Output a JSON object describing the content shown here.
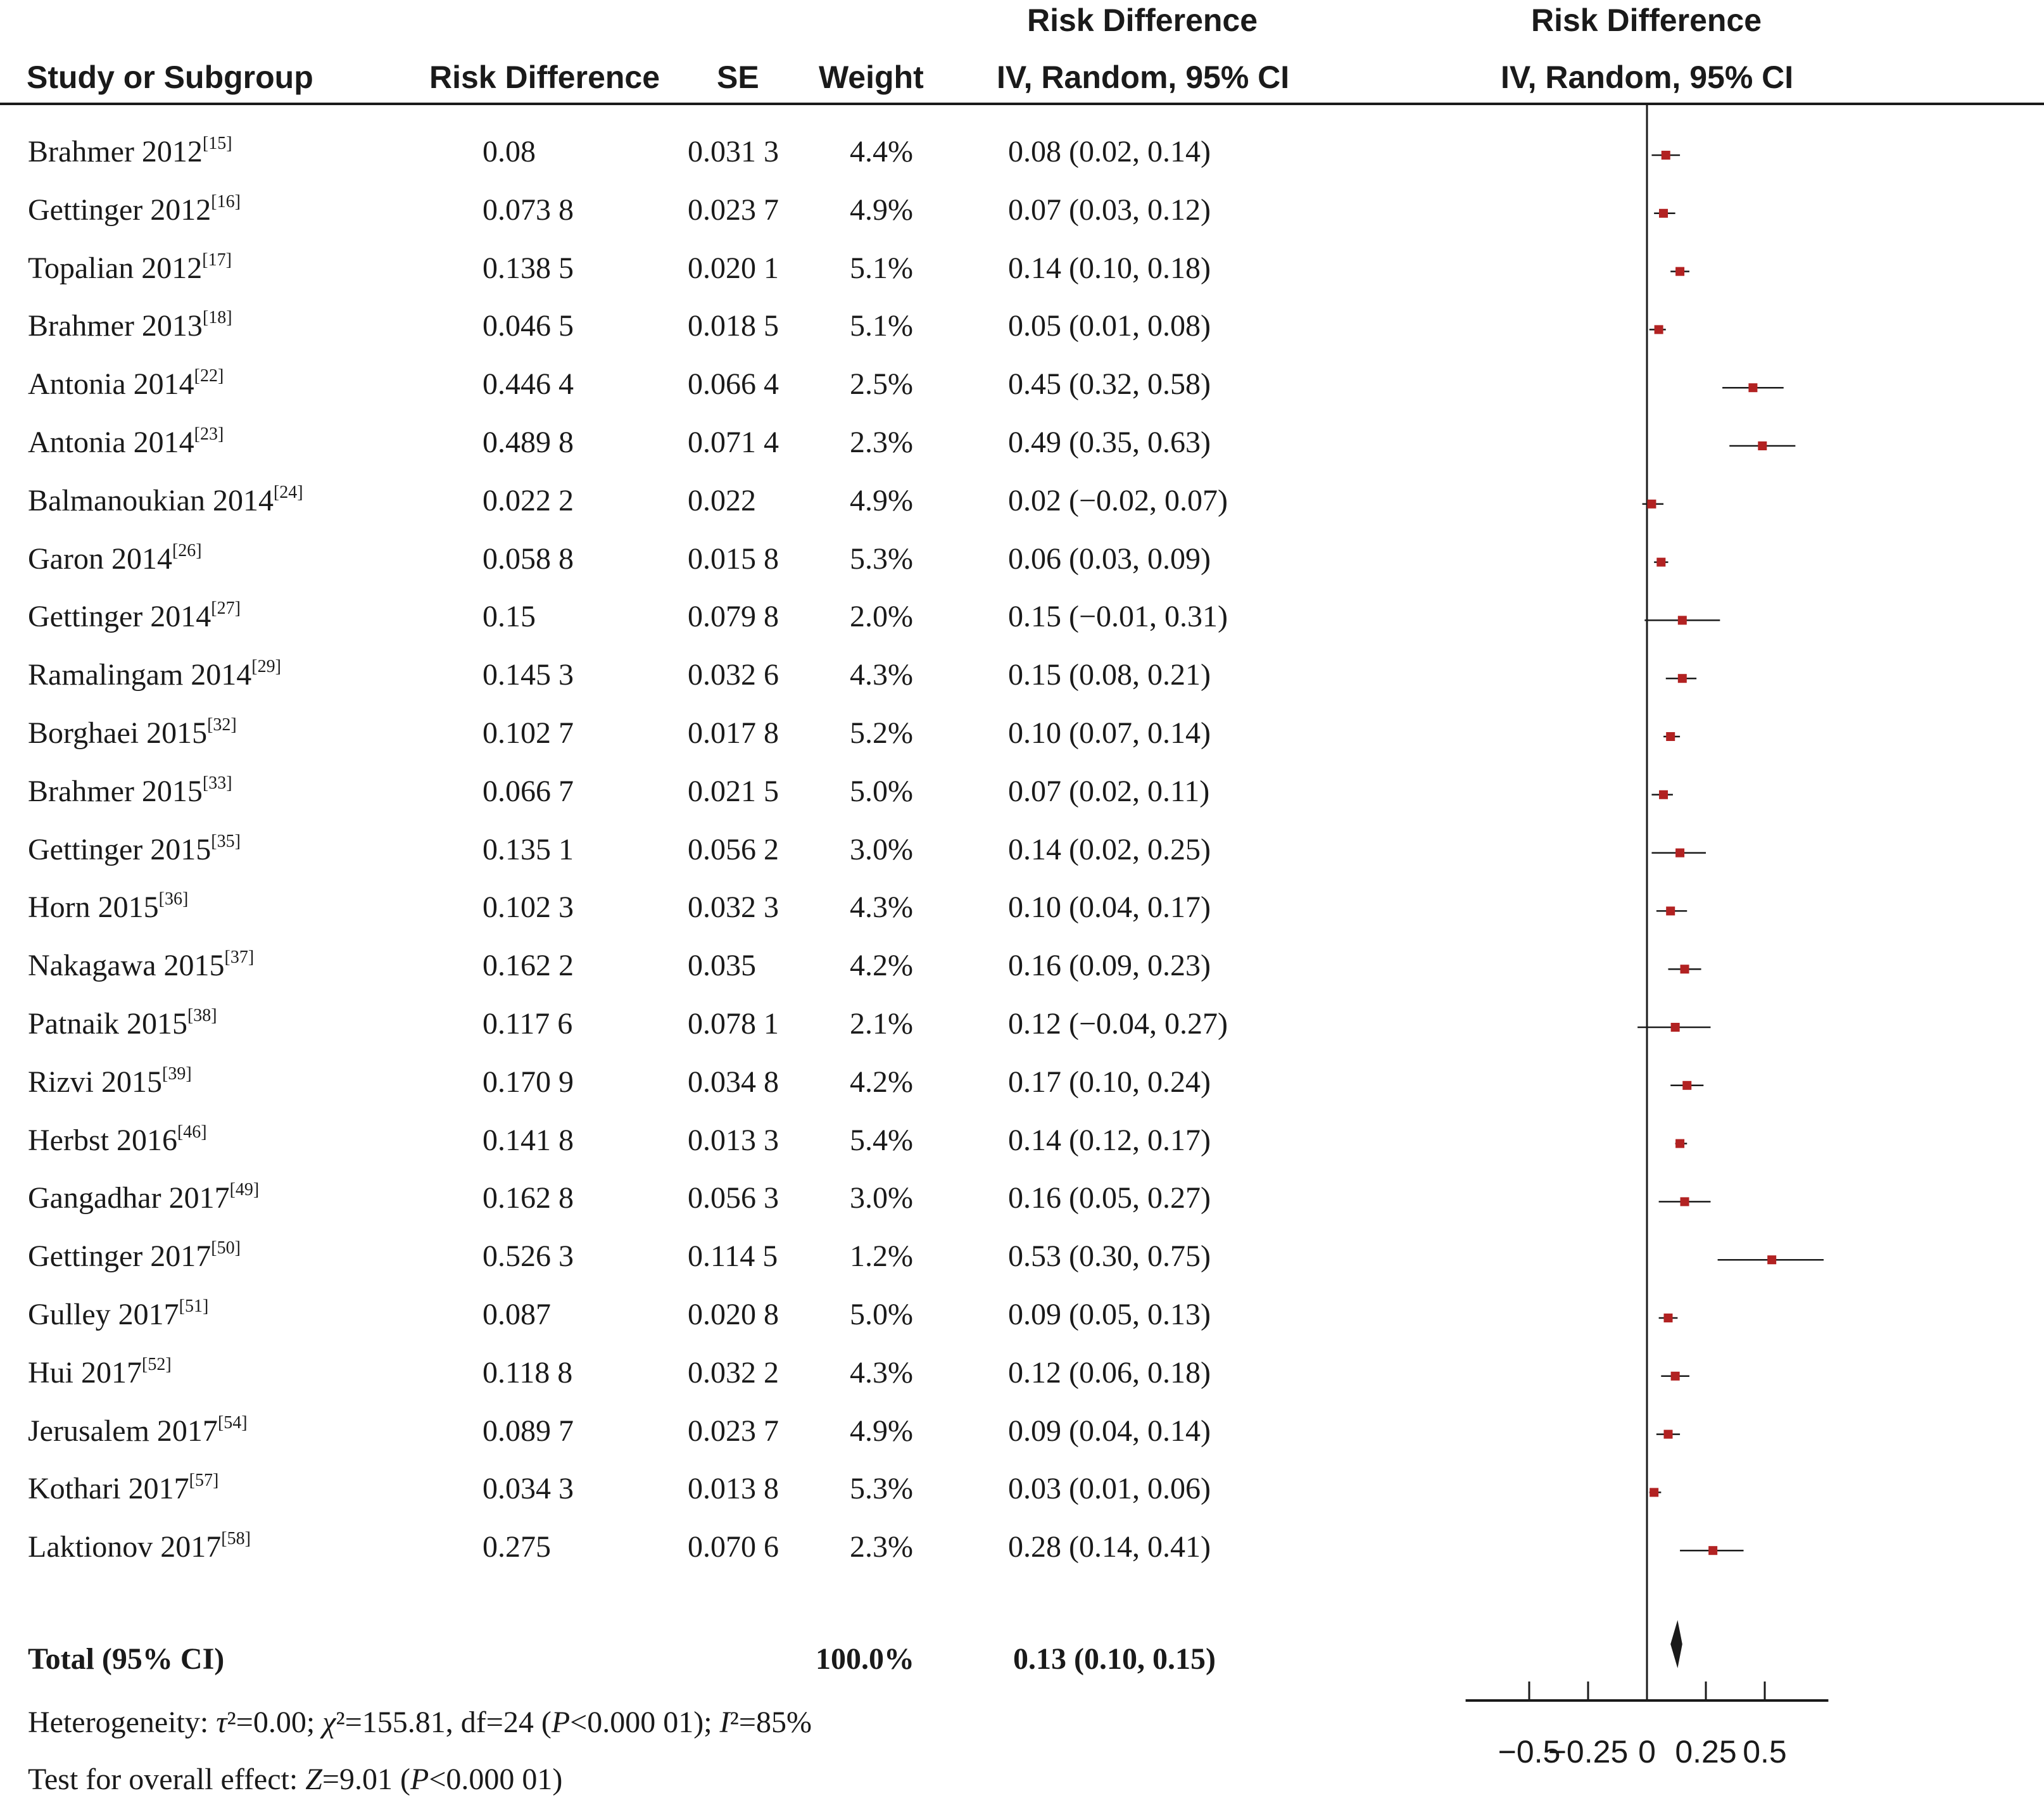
{
  "headers": {
    "study": "Study or Subgroup",
    "rd": "Risk Difference",
    "se": "SE",
    "weight": "Weight",
    "ci_top": "Risk Difference",
    "ci_bottom": "IV, Random, 95% CI",
    "plot_top": "Risk Difference",
    "plot_bottom": "IV, Random, 95% CI"
  },
  "chart_data": {
    "type": "forest",
    "xlabel": "",
    "x_ticks": [
      "−0.5",
      "−0.25",
      "0",
      "0.25",
      "0.5"
    ],
    "x_tick_values": [
      -0.5,
      -0.25,
      0,
      0.25,
      0.5
    ],
    "xlim": [
      -0.77,
      0.77
    ],
    "studies": [
      {
        "name": "Brahmer 2012",
        "ref": "[15]",
        "rd": "0.08",
        "se": "0.031 3",
        "weight": "4.4%",
        "ci_text": "0.08 (0.02, 0.14)",
        "est": 0.08,
        "lo": 0.02,
        "hi": 0.14
      },
      {
        "name": "Gettinger 2012",
        "ref": "[16]",
        "rd": "0.073 8",
        "se": "0.023 7",
        "weight": "4.9%",
        "ci_text": "0.07 (0.03, 0.12)",
        "est": 0.07,
        "lo": 0.03,
        "hi": 0.12
      },
      {
        "name": "Topalian 2012",
        "ref": "[17]",
        "rd": "0.138 5",
        "se": "0.020 1",
        "weight": "5.1%",
        "ci_text": "0.14 (0.10, 0.18)",
        "est": 0.14,
        "lo": 0.1,
        "hi": 0.18
      },
      {
        "name": "Brahmer 2013",
        "ref": "[18]",
        "rd": "0.046 5",
        "se": "0.018 5",
        "weight": "5.1%",
        "ci_text": "0.05 (0.01, 0.08)",
        "est": 0.05,
        "lo": 0.01,
        "hi": 0.08
      },
      {
        "name": "Antonia 2014",
        "ref": "[22]",
        "rd": "0.446 4",
        "se": "0.066 4",
        "weight": "2.5%",
        "ci_text": "0.45 (0.32, 0.58)",
        "est": 0.45,
        "lo": 0.32,
        "hi": 0.58
      },
      {
        "name": "Antonia 2014",
        "ref": "[23]",
        "rd": "0.489 8",
        "se": "0.071 4",
        "weight": "2.3%",
        "ci_text": "0.49 (0.35, 0.63)",
        "est": 0.49,
        "lo": 0.35,
        "hi": 0.63
      },
      {
        "name": "Balmanoukian 2014",
        "ref": "[24]",
        "rd": "0.022 2",
        "se": "0.022",
        "weight": "4.9%",
        "ci_text": "0.02 (−0.02, 0.07)",
        "est": 0.02,
        "lo": -0.02,
        "hi": 0.07
      },
      {
        "name": "Garon 2014",
        "ref": "[26]",
        "rd": "0.058 8",
        "se": "0.015 8",
        "weight": "5.3%",
        "ci_text": "0.06 (0.03, 0.09)",
        "est": 0.06,
        "lo": 0.03,
        "hi": 0.09
      },
      {
        "name": "Gettinger 2014",
        "ref": "[27]",
        "rd": "0.15",
        "se": "0.079 8",
        "weight": "2.0%",
        "ci_text": "0.15 (−0.01, 0.31)",
        "est": 0.15,
        "lo": -0.01,
        "hi": 0.31
      },
      {
        "name": "Ramalingam 2014",
        "ref": "[29]",
        "rd": "0.145 3",
        "se": "0.032 6",
        "weight": "4.3%",
        "ci_text": "0.15 (0.08, 0.21)",
        "est": 0.15,
        "lo": 0.08,
        "hi": 0.21
      },
      {
        "name": "Borghaei 2015",
        "ref": "[32]",
        "rd": "0.102 7",
        "se": "0.017 8",
        "weight": "5.2%",
        "ci_text": "0.10 (0.07, 0.14)",
        "est": 0.1,
        "lo": 0.07,
        "hi": 0.14
      },
      {
        "name": "Brahmer 2015",
        "ref": "[33]",
        "rd": "0.066 7",
        "se": "0.021 5",
        "weight": "5.0%",
        "ci_text": "0.07 (0.02, 0.11)",
        "est": 0.07,
        "lo": 0.02,
        "hi": 0.11
      },
      {
        "name": "Gettinger 2015",
        "ref": "[35]",
        "rd": "0.135 1",
        "se": "0.056 2",
        "weight": "3.0%",
        "ci_text": "0.14 (0.02, 0.25)",
        "est": 0.14,
        "lo": 0.02,
        "hi": 0.25
      },
      {
        "name": "Horn 2015",
        "ref": "[36]",
        "rd": "0.102 3",
        "se": "0.032 3",
        "weight": "4.3%",
        "ci_text": "0.10 (0.04, 0.17)",
        "est": 0.1,
        "lo": 0.04,
        "hi": 0.17
      },
      {
        "name": "Nakagawa 2015",
        "ref": "[37]",
        "rd": "0.162 2",
        "se": "0.035",
        "weight": "4.2%",
        "ci_text": "0.16 (0.09, 0.23)",
        "est": 0.16,
        "lo": 0.09,
        "hi": 0.23
      },
      {
        "name": "Patnaik 2015",
        "ref": "[38]",
        "rd": "0.117 6",
        "se": "0.078 1",
        "weight": "2.1%",
        "ci_text": "0.12 (−0.04, 0.27)",
        "est": 0.12,
        "lo": -0.04,
        "hi": 0.27
      },
      {
        "name": "Rizvi 2015",
        "ref": "[39]",
        "rd": "0.170 9",
        "se": "0.034 8",
        "weight": "4.2%",
        "ci_text": "0.17 (0.10, 0.24)",
        "est": 0.17,
        "lo": 0.1,
        "hi": 0.24
      },
      {
        "name": "Herbst 2016",
        "ref": "[46]",
        "rd": "0.141 8",
        "se": "0.013 3",
        "weight": "5.4%",
        "ci_text": "0.14 (0.12, 0.17)",
        "est": 0.14,
        "lo": 0.12,
        "hi": 0.17
      },
      {
        "name": "Gangadhar 2017",
        "ref": "[49]",
        "rd": "0.162 8",
        "se": "0.056 3",
        "weight": "3.0%",
        "ci_text": "0.16 (0.05, 0.27)",
        "est": 0.16,
        "lo": 0.05,
        "hi": 0.27
      },
      {
        "name": "Gettinger 2017",
        "ref": "[50]",
        "rd": "0.526 3",
        "se": "0.114 5",
        "weight": "1.2%",
        "ci_text": "0.53 (0.30, 0.75)",
        "est": 0.53,
        "lo": 0.3,
        "hi": 0.75
      },
      {
        "name": "Gulley 2017",
        "ref": "[51]",
        "rd": "0.087",
        "se": "0.020 8",
        "weight": "5.0%",
        "ci_text": "0.09 (0.05, 0.13)",
        "est": 0.09,
        "lo": 0.05,
        "hi": 0.13
      },
      {
        "name": "Hui 2017",
        "ref": "[52]",
        "rd": "0.118 8",
        "se": "0.032 2",
        "weight": "4.3%",
        "ci_text": "0.12 (0.06, 0.18)",
        "est": 0.12,
        "lo": 0.06,
        "hi": 0.18
      },
      {
        "name": "Jerusalem 2017",
        "ref": "[54]",
        "rd": "0.089 7",
        "se": "0.023 7",
        "weight": "4.9%",
        "ci_text": "0.09 (0.04, 0.14)",
        "est": 0.09,
        "lo": 0.04,
        "hi": 0.14
      },
      {
        "name": "Kothari 2017",
        "ref": "[57]",
        "rd": "0.034 3",
        "se": "0.013 8",
        "weight": "5.3%",
        "ci_text": "0.03 (0.01, 0.06)",
        "est": 0.03,
        "lo": 0.01,
        "hi": 0.06
      },
      {
        "name": "Laktionov 2017",
        "ref": "[58]",
        "rd": "0.275",
        "se": "0.070 6",
        "weight": "2.3%",
        "ci_text": "0.28 (0.14, 0.41)",
        "est": 0.28,
        "lo": 0.14,
        "hi": 0.41
      }
    ],
    "total": {
      "label": "Total (95% CI)",
      "weight": "100.0%",
      "ci_text": "0.13 (0.10, 0.15)",
      "est": 0.13,
      "lo": 0.1,
      "hi": 0.15
    },
    "colors": {
      "marker": "#b22222",
      "line": "#1a1a1a",
      "diamond": "#1a1a1a"
    }
  },
  "footer": {
    "heterogeneity": "Heterogeneity: τ²=0.00; χ²=155.81, df=24 (P<0.000 01); I²=85%",
    "overall": "Test for overall effect: Z=9.01 (P<0.000 01)"
  }
}
